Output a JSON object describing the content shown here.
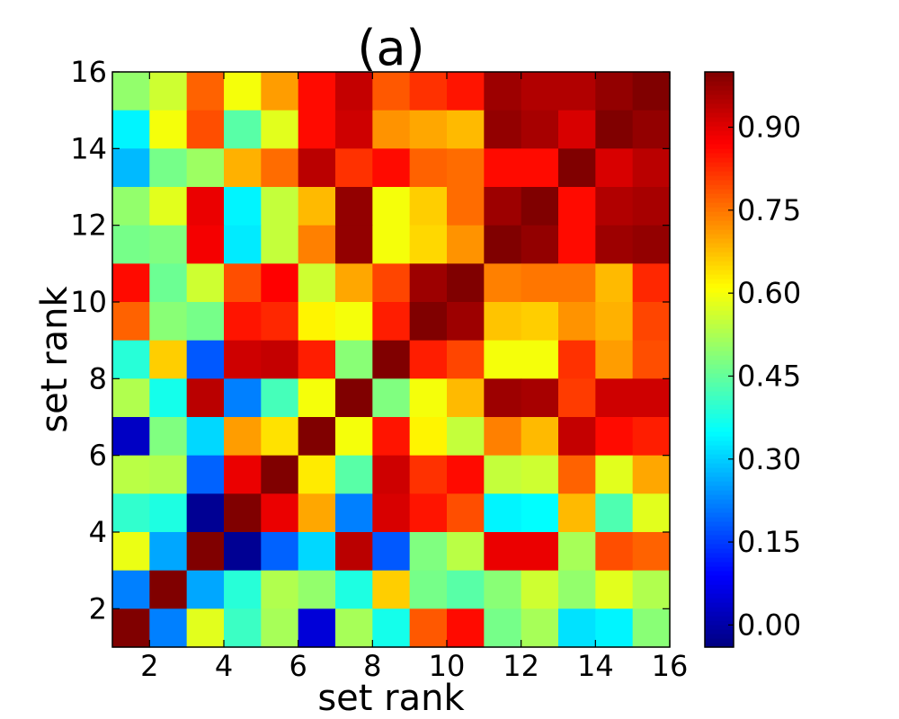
{
  "chart_data": {
    "type": "heatmap",
    "title": "(a)",
    "xlabel": "set rank",
    "ylabel": "set rank",
    "x_range": [
      1,
      16
    ],
    "y_range": [
      1,
      16
    ],
    "x_ticks": [
      "2",
      "4",
      "6",
      "8",
      "10",
      "12",
      "14",
      "16"
    ],
    "y_ticks": [
      "2",
      "4",
      "6",
      "8",
      "10",
      "12",
      "14",
      "16"
    ],
    "colorbar": {
      "colormap": "jet",
      "vmin": -0.04,
      "vmax": 1.0,
      "ticks": [
        "0.00",
        "0.15",
        "0.30",
        "0.45",
        "0.60",
        "0.75",
        "0.90"
      ]
    },
    "rows_top_to_bottom": [
      [
        0.5,
        0.56,
        0.77,
        0.6,
        0.71,
        0.86,
        0.93,
        0.78,
        0.82,
        0.85,
        0.97,
        0.95,
        0.95,
        0.98,
        1.0
      ],
      [
        0.34,
        0.6,
        0.79,
        0.44,
        0.58,
        0.86,
        0.92,
        0.72,
        0.7,
        0.68,
        0.98,
        0.96,
        0.91,
        1.0,
        0.98
      ],
      [
        0.28,
        0.47,
        0.51,
        0.69,
        0.76,
        0.94,
        0.82,
        0.86,
        0.77,
        0.76,
        0.86,
        0.86,
        1.0,
        0.91,
        0.94
      ],
      [
        0.5,
        0.58,
        0.89,
        0.34,
        0.55,
        0.68,
        0.98,
        0.6,
        0.66,
        0.76,
        0.97,
        1.0,
        0.86,
        0.95,
        0.96
      ],
      [
        0.47,
        0.48,
        0.88,
        0.33,
        0.55,
        0.74,
        0.98,
        0.6,
        0.65,
        0.72,
        1.0,
        0.98,
        0.86,
        0.97,
        0.98
      ],
      [
        0.86,
        0.46,
        0.56,
        0.79,
        0.87,
        0.56,
        0.7,
        0.8,
        0.97,
        1.0,
        0.74,
        0.75,
        0.75,
        0.68,
        0.83
      ],
      [
        0.77,
        0.49,
        0.47,
        0.85,
        0.83,
        0.62,
        0.6,
        0.84,
        1.0,
        0.97,
        0.67,
        0.66,
        0.72,
        0.69,
        0.8
      ],
      [
        0.39,
        0.66,
        0.18,
        0.92,
        0.93,
        0.84,
        0.49,
        1.0,
        0.84,
        0.8,
        0.6,
        0.6,
        0.82,
        0.71,
        0.79
      ],
      [
        0.53,
        0.37,
        0.94,
        0.22,
        0.42,
        0.6,
        1.0,
        0.48,
        0.6,
        0.68,
        0.97,
        0.96,
        0.81,
        0.92,
        0.92
      ],
      [
        0.03,
        0.48,
        0.31,
        0.71,
        0.64,
        1.0,
        0.6,
        0.85,
        0.62,
        0.55,
        0.74,
        0.68,
        0.93,
        0.86,
        0.84
      ],
      [
        0.54,
        0.53,
        0.19,
        0.89,
        1.0,
        0.63,
        0.44,
        0.92,
        0.82,
        0.86,
        0.55,
        0.56,
        0.77,
        0.58,
        0.7
      ],
      [
        0.4,
        0.38,
        -0.02,
        1.0,
        0.89,
        0.7,
        0.22,
        0.91,
        0.85,
        0.79,
        0.34,
        0.35,
        0.68,
        0.43,
        0.58
      ],
      [
        0.59,
        0.26,
        1.0,
        -0.02,
        0.19,
        0.31,
        0.94,
        0.18,
        0.48,
        0.54,
        0.89,
        0.89,
        0.52,
        0.79,
        0.77
      ],
      [
        0.22,
        1.0,
        0.26,
        0.39,
        0.53,
        0.5,
        0.38,
        0.66,
        0.47,
        0.44,
        0.49,
        0.56,
        0.5,
        0.58,
        0.53
      ],
      [
        1.0,
        0.22,
        0.58,
        0.41,
        0.52,
        0.05,
        0.52,
        0.37,
        0.78,
        0.86,
        0.47,
        0.52,
        0.32,
        0.34,
        0.49
      ]
    ]
  }
}
